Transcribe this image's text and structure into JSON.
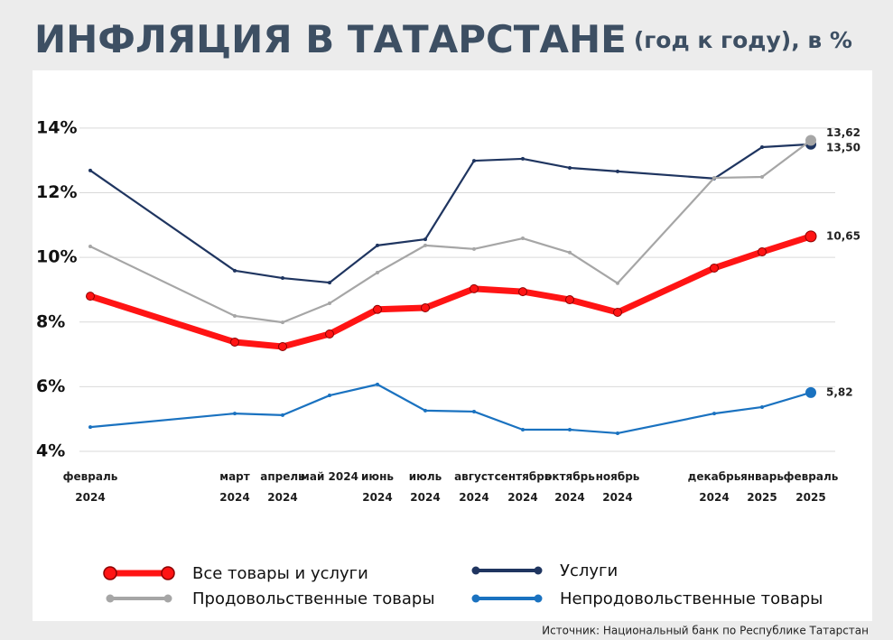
{
  "chart_data": {
    "type": "line",
    "title": "ИНФЛЯЦИЯ В ТАТАРСТАНЕ",
    "subtitle": "(год к году), в %",
    "source": "Источник: Национальный банк по Республике Татарстан",
    "categories": [
      "февраль 2024",
      "март 2024",
      "апрель 2024",
      "май 2024",
      "июнь 2024",
      "июль 2024",
      "август 2024",
      "сентябрь 2024",
      "октябрь 2024",
      "ноябрь 2024",
      "декабрь 2024",
      "январь 2025",
      "февраль 2025"
    ],
    "ylim": [
      4,
      14.5
    ],
    "yticks": [
      {
        "value": 4,
        "label": "4%"
      },
      {
        "value": 6,
        "label": "6%"
      },
      {
        "value": 8,
        "label": "8%"
      },
      {
        "value": 10,
        "label": "10%"
      },
      {
        "value": 12,
        "label": "12%"
      },
      {
        "value": 14,
        "label": "14%"
      }
    ],
    "grid": true,
    "series": [
      {
        "name": "Услуги",
        "color": "#1f3560",
        "values": [
          12.69,
          9.59,
          9.36,
          9.22,
          10.37,
          10.56,
          12.99,
          13.05,
          12.77,
          12.66,
          12.44,
          13.41,
          13.5
        ],
        "value_labels": [
          null,
          null,
          null,
          null,
          null,
          null,
          null,
          null,
          null,
          null,
          null,
          null,
          "13,50"
        ]
      },
      {
        "name": "Продовольственные товары",
        "color": "#a6a6a6",
        "values": [
          10.34,
          8.19,
          7.99,
          8.58,
          9.53,
          10.37,
          10.26,
          10.59,
          10.15,
          9.2,
          12.46,
          12.49,
          13.62
        ],
        "value_labels": [
          null,
          null,
          null,
          null,
          null,
          null,
          null,
          null,
          null,
          null,
          null,
          null,
          "13,62"
        ]
      },
      {
        "name": "Все товары и услуги",
        "color": "#ff1414",
        "values": [
          8.8,
          7.38,
          7.24,
          7.63,
          8.39,
          8.44,
          9.03,
          8.94,
          8.69,
          8.3,
          9.67,
          10.17,
          10.65
        ],
        "value_labels": [
          null,
          null,
          null,
          null,
          null,
          null,
          null,
          null,
          null,
          null,
          null,
          null,
          "10,65"
        ]
      },
      {
        "name": "Непродовольственные товары",
        "color": "#1a72c0",
        "values": [
          4.75,
          5.17,
          5.12,
          5.73,
          6.07,
          5.26,
          5.23,
          4.67,
          4.67,
          4.56,
          5.17,
          5.37,
          5.82
        ],
        "value_labels": [
          null,
          null,
          null,
          null,
          null,
          null,
          null,
          null,
          null,
          null,
          null,
          null,
          "5,82"
        ]
      }
    ]
  }
}
